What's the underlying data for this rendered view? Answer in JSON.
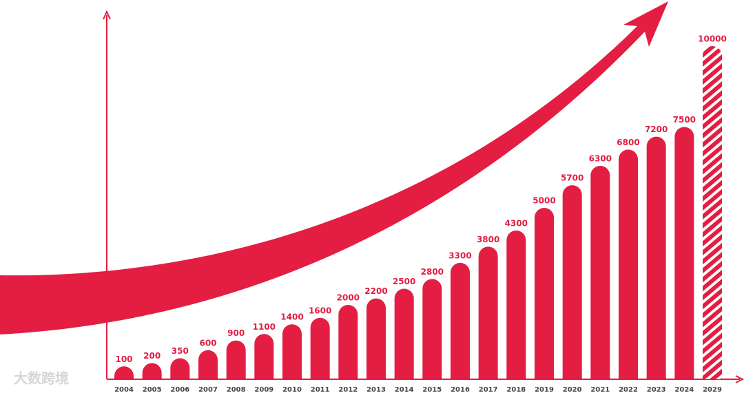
{
  "chart_data": {
    "type": "bar",
    "categories": [
      "2004",
      "2005",
      "2006",
      "2007",
      "2008",
      "2009",
      "2010",
      "2011",
      "2012",
      "2013",
      "2014",
      "2015",
      "2016",
      "2017",
      "2018",
      "2019",
      "2020",
      "2021",
      "2022",
      "2023",
      "2024",
      "2029"
    ],
    "values": [
      100,
      200,
      350,
      600,
      900,
      1100,
      1400,
      1600,
      2000,
      2200,
      2500,
      2800,
      3300,
      3800,
      4300,
      5000,
      5700,
      6300,
      6800,
      7200,
      7500,
      10000
    ],
    "color": "#e31e42",
    "hatched_index": 21,
    "watermark": "大数跨境"
  }
}
